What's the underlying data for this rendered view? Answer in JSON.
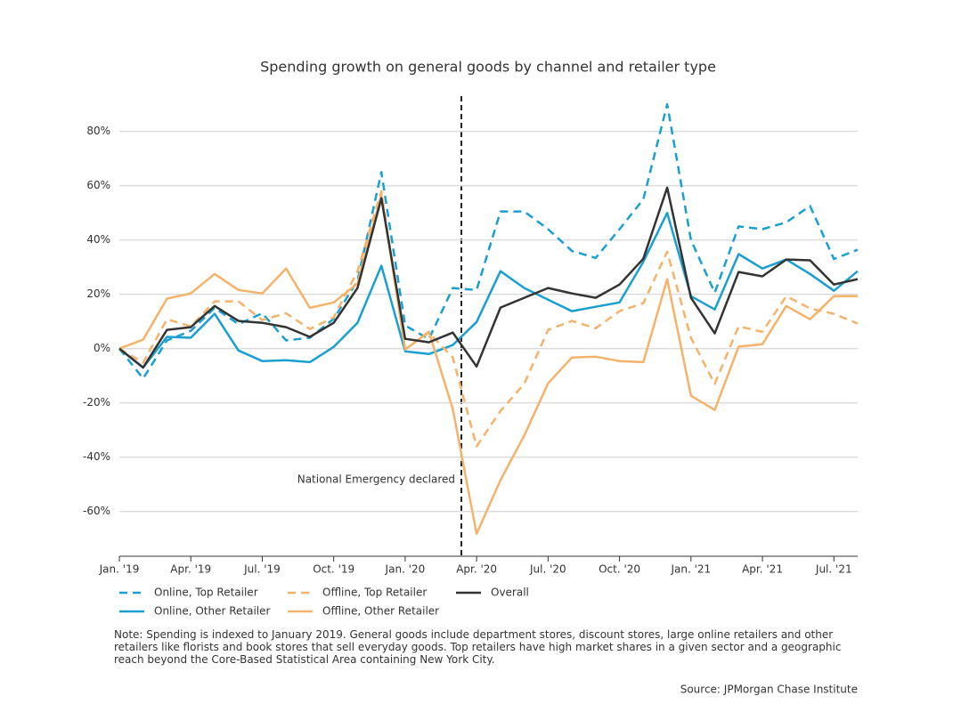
{
  "chart_data": {
    "type": "line",
    "title": "Spending growth on general goods by channel and retailer type",
    "categories": [
      "Jan. '19",
      null,
      null,
      "Apr. '19",
      null,
      null,
      "Jul. '19",
      null,
      null,
      "Oct. '19",
      null,
      null,
      "Jan. '20",
      null,
      null,
      "Apr. '20",
      null,
      null,
      "Jul. '20",
      null,
      null,
      "Oct. '20",
      null,
      null,
      "Jan. '21",
      null,
      null,
      "Apr. '21",
      null,
      null,
      "Jul. '21",
      null
    ],
    "series": [
      {
        "name": "Online, Top Retailer",
        "color": "#1a9fd1",
        "dashed": true,
        "values": [
          0,
          -11,
          3,
          6.5,
          15,
          9,
          13,
          3,
          4,
          11,
          25,
          65,
          8.5,
          3.5,
          22.3,
          21.6,
          50.5,
          50.5,
          44,
          36,
          33.4,
          44,
          55,
          90,
          40,
          20.6,
          45,
          44,
          46.5,
          52.5,
          33,
          36.4
        ]
      },
      {
        "name": "Online, Other Retailer",
        "color": "#1a9fd1",
        "dashed": false,
        "values": [
          0,
          -7,
          4.3,
          4,
          12.8,
          -0.7,
          -4.6,
          -4.3,
          -5,
          0.6,
          9.5,
          30.5,
          -1,
          -2,
          1.3,
          9.8,
          28.5,
          22.3,
          18,
          13.8,
          15.4,
          17,
          32,
          50,
          19.3,
          14.4,
          34.8,
          29.5,
          32.8,
          27.5,
          21.3,
          28.5
        ]
      },
      {
        "name": "Offline, Top Retailer",
        "color": "#f5b26b",
        "dashed": true,
        "values": [
          0,
          -5.2,
          10.8,
          8.2,
          17.4,
          17.4,
          10.5,
          13,
          7.2,
          11.5,
          28.5,
          58,
          -0.3,
          5.9,
          -3.3,
          -36,
          -23,
          -13,
          6.9,
          10.2,
          7.5,
          13.8,
          16.7,
          35.7,
          3.9,
          -13,
          8.2,
          6.2,
          19.3,
          14.8,
          12.8,
          9.2
        ]
      },
      {
        "name": "Offline, Other Retailer",
        "color": "#f5b26b",
        "dashed": false,
        "values": [
          0,
          3.3,
          18.4,
          20.3,
          27.5,
          21.6,
          20.3,
          29.5,
          15,
          17,
          24,
          56.7,
          -0.3,
          6.2,
          -22.3,
          -68.2,
          -48.5,
          -32,
          -12.8,
          -3.3,
          -3,
          -4.6,
          -5,
          25.6,
          -17.4,
          -22.6,
          0.7,
          1.6,
          15.7,
          10.8,
          19.3,
          19.3
        ]
      },
      {
        "name": "Overall",
        "color": "#333333",
        "dashed": false,
        "values": [
          0,
          -7,
          6.9,
          7.9,
          15.7,
          10.2,
          9.5,
          7.9,
          4.3,
          9.5,
          22.3,
          55.4,
          3.6,
          2.3,
          5.9,
          -6.6,
          15.1,
          18.7,
          22.3,
          20.3,
          18.7,
          23.6,
          33.1,
          59.3,
          18.7,
          5.6,
          28.2,
          26.6,
          32.8,
          32.5,
          23.6,
          25.6
        ]
      }
    ],
    "ylim": [
      -76.5,
      93
    ],
    "yticks": [
      {
        "value": -60,
        "label": "-60%"
      },
      {
        "value": -40,
        "label": "-40%"
      },
      {
        "value": -20,
        "label": "-20%"
      },
      {
        "value": 0,
        "label": "0%"
      },
      {
        "value": 20,
        "label": "20%"
      },
      {
        "value": 40,
        "label": "40%"
      },
      {
        "value": 60,
        "label": "60%"
      },
      {
        "value": 80,
        "label": "80%"
      }
    ],
    "grid": true,
    "annotation": "National Emergency declared",
    "note": "Note: Spending is indexed to January 2019. General goods include department stores, discount stores, large online retailers and other retailers like florists and book stores that sell everyday goods. Top retailers have high market shares in a given sector and a geographic reach beyond the Core-Based Statistical Area containing New York City.",
    "source": "Source: JPMorgan Chase Institute"
  }
}
